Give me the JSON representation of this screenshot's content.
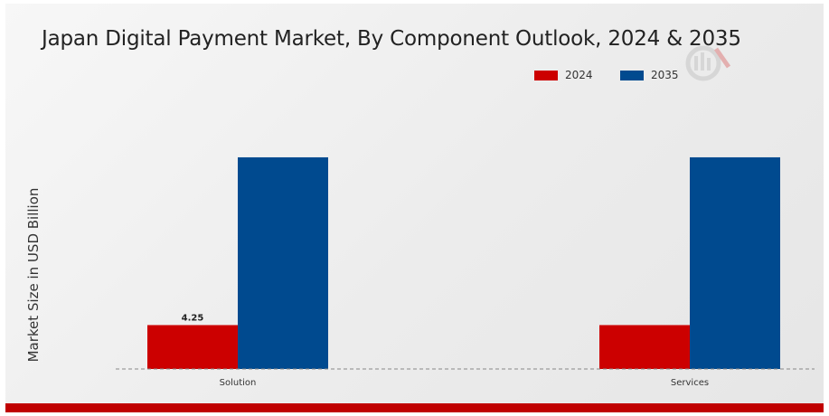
{
  "chart_data": {
    "type": "bar",
    "title": "Japan Digital Payment Market, By Component Outlook, 2024 & 2035",
    "ylabel": "Market Size in USD Billion",
    "xlabel": "",
    "categories": [
      "Solution",
      "Services"
    ],
    "series": [
      {
        "name": "2024",
        "color": "#cc0000",
        "values": [
          4.25,
          4.25
        ]
      },
      {
        "name": "2035",
        "color": "#004a8f",
        "values": [
          20.5,
          20.5
        ]
      }
    ],
    "data_labels": [
      {
        "series": 0,
        "category": 0,
        "text": "4.25"
      }
    ],
    "ylim": [
      0,
      24
    ],
    "grid": false,
    "legend_position": "top-right"
  }
}
